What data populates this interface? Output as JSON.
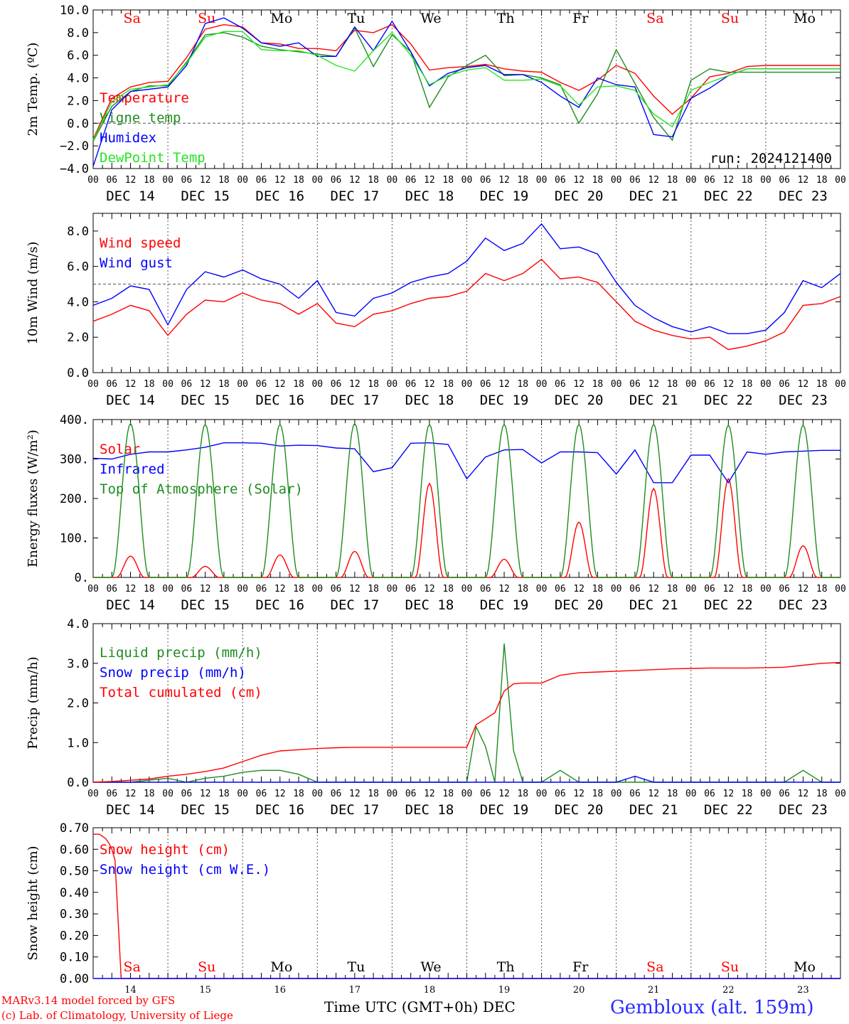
{
  "footer": {
    "credit_line1": "MARv3.14 model forced by GFS",
    "credit_line2": "(c) Lab. of Climatology, University of Liege",
    "xaxis_title": "Time UTC (GMT+0h) DEC",
    "station": "Gembloux (alt. 159m)"
  },
  "colors": {
    "red": "#ff0000",
    "green": "#1e8c1e",
    "blue": "#0000ff",
    "lightgreen": "#22e622",
    "grid": "#555555"
  },
  "days": [
    "14",
    "15",
    "16",
    "17",
    "18",
    "19",
    "20",
    "21",
    "22",
    "23"
  ],
  "day_labels": [
    "DEC 14",
    "DEC 15",
    "DEC 16",
    "DEC 17",
    "DEC 18",
    "DEC 19",
    "DEC 20",
    "DEC 21",
    "DEC 22",
    "DEC 23"
  ],
  "weekdays": [
    "Sa",
    "Su",
    "Mo",
    "Tu",
    "We",
    "Th",
    "Fr",
    "Sa",
    "Su",
    "Mo"
  ],
  "hour_ticks": [
    "00",
    "06",
    "12",
    "18"
  ],
  "chart_data": [
    {
      "type": "line",
      "ylabel": "2m Temp. (ºC)",
      "ylim": [
        -4,
        10
      ],
      "yticks": [
        "−4.0",
        "−2.0",
        "0.0",
        "2.0",
        "4.0",
        "6.0",
        "8.0",
        "10.0"
      ],
      "ytick_values": [
        -4,
        -2,
        0,
        2,
        4,
        6,
        8,
        10
      ],
      "ref_line": 0,
      "annotation": "run: 2024121400",
      "x_hours": [
        0,
        6,
        12,
        18,
        24,
        30,
        36,
        42,
        48,
        54,
        60,
        66,
        72,
        78,
        84,
        90,
        96,
        102,
        108,
        114,
        120,
        126,
        132,
        138,
        144,
        150,
        156,
        162,
        168,
        174,
        180,
        186,
        192,
        198,
        204,
        210,
        216,
        222,
        228,
        234,
        240
      ],
      "series": [
        {
          "name": "Temperature",
          "color": "#ff0000",
          "values": [
            -1.4,
            2.2,
            3.2,
            3.6,
            3.7,
            5.8,
            8.3,
            8.7,
            8.5,
            7.1,
            7.0,
            6.6,
            6.6,
            6.4,
            8.2,
            8.0,
            8.7,
            7.0,
            4.7,
            4.9,
            5.0,
            5.2,
            4.8,
            4.6,
            4.5,
            3.6,
            2.9,
            3.8,
            5.1,
            4.4,
            2.4,
            0.8,
            2.2,
            4.1,
            4.4,
            5.0,
            5.1,
            5.1,
            5.1,
            5.1,
            5.1
          ]
        },
        {
          "name": "Vigne temp",
          "color": "#1e8c1e",
          "values": [
            -1.6,
            1.5,
            2.8,
            3.3,
            3.3,
            5.4,
            7.8,
            8.0,
            7.6,
            6.8,
            6.5,
            6.3,
            6.1,
            5.9,
            8.4,
            5.0,
            7.8,
            6.3,
            1.4,
            4.1,
            5.1,
            6.0,
            4.2,
            4.3,
            4.0,
            3.4,
            0.0,
            2.6,
            6.5,
            3.5,
            0.5,
            -1.5,
            3.8,
            4.8,
            4.5,
            4.5,
            4.5,
            4.5,
            4.5,
            4.5,
            4.5
          ]
        },
        {
          "name": "Humidex",
          "color": "#0000ff",
          "values": [
            -3.8,
            1.2,
            2.8,
            3.0,
            3.2,
            5.1,
            8.8,
            9.3,
            8.4,
            7.1,
            6.8,
            7.1,
            5.9,
            5.9,
            8.5,
            6.4,
            9.0,
            6.3,
            3.3,
            4.4,
            4.9,
            5.1,
            4.3,
            4.3,
            3.6,
            2.4,
            1.4,
            4.0,
            3.4,
            3.2,
            -1.0,
            -1.2,
            2.2,
            3.1,
            4.2,
            4.8,
            4.8,
            4.8,
            4.8,
            4.8,
            4.8
          ]
        },
        {
          "name": "DewPoint Temp",
          "color": "#22e622",
          "values": [
            -1.5,
            1.9,
            3.0,
            3.2,
            3.4,
            5.3,
            7.6,
            8.1,
            8.1,
            6.5,
            6.4,
            6.4,
            6.0,
            5.1,
            4.6,
            6.4,
            8.0,
            6.0,
            3.4,
            4.2,
            4.7,
            4.9,
            3.8,
            3.8,
            3.9,
            3.3,
            1.6,
            3.2,
            3.3,
            2.9,
            0.8,
            -0.3,
            2.9,
            3.6,
            4.2,
            4.8,
            4.8,
            4.8,
            4.8,
            4.8,
            4.8
          ]
        }
      ]
    },
    {
      "type": "line",
      "ylabel": "10m Wind (m/s)",
      "ylim": [
        0,
        9
      ],
      "yticks": [
        "0.0",
        "2.0",
        "4.0",
        "6.0",
        "8.0"
      ],
      "ytick_values": [
        0,
        2,
        4,
        6,
        8
      ],
      "ref_line": 5,
      "x_hours": [
        0,
        6,
        12,
        18,
        24,
        30,
        36,
        42,
        48,
        54,
        60,
        66,
        72,
        78,
        84,
        90,
        96,
        102,
        108,
        114,
        120,
        126,
        132,
        138,
        144,
        150,
        156,
        162,
        168,
        174,
        180,
        186,
        192,
        198,
        204,
        210,
        216,
        222,
        228,
        234,
        240
      ],
      "series": [
        {
          "name": "Wind speed",
          "color": "#ff0000",
          "values": [
            2.9,
            3.3,
            3.8,
            3.5,
            2.1,
            3.3,
            4.1,
            4.0,
            4.5,
            4.1,
            3.9,
            3.3,
            3.9,
            2.8,
            2.6,
            3.3,
            3.5,
            3.9,
            4.2,
            4.3,
            4.6,
            5.6,
            5.2,
            5.6,
            6.4,
            5.3,
            5.4,
            5.1,
            4.0,
            2.9,
            2.4,
            2.1,
            1.9,
            2.0,
            1.3,
            1.5,
            1.8,
            2.3,
            3.8,
            3.9,
            4.3
          ]
        },
        {
          "name": "Wind gust",
          "color": "#0000ff",
          "values": [
            3.8,
            4.2,
            4.9,
            4.7,
            2.7,
            4.7,
            5.7,
            5.4,
            5.8,
            5.3,
            5.0,
            4.2,
            5.2,
            3.4,
            3.2,
            4.2,
            4.5,
            5.1,
            5.4,
            5.6,
            6.3,
            7.6,
            6.9,
            7.3,
            8.4,
            7.0,
            7.1,
            6.7,
            5.1,
            3.8,
            3.1,
            2.6,
            2.3,
            2.6,
            2.2,
            2.2,
            2.4,
            3.4,
            5.2,
            4.8,
            5.6
          ]
        }
      ]
    },
    {
      "type": "line",
      "ylabel": "Energy fluxes (W/m²)",
      "ylim": [
        0,
        400
      ],
      "yticks": [
        "0.",
        "100.",
        "200.",
        "300.",
        "400."
      ],
      "ytick_values": [
        0,
        100,
        200,
        300,
        400
      ],
      "x_hours": [
        0,
        6,
        12,
        18,
        24,
        30,
        36,
        42,
        48,
        54,
        60,
        66,
        72,
        78,
        84,
        90,
        96,
        102,
        108,
        114,
        120,
        126,
        132,
        138,
        144,
        150,
        156,
        162,
        168,
        174,
        180,
        186,
        192,
        198,
        204,
        210,
        216,
        222,
        228,
        234,
        240
      ],
      "daily_peaks": {
        "Solar": [
          54,
          28,
          57,
          66,
          238,
          46,
          140,
          225,
          250,
          80
        ],
        "Top of Atmosphere (Solar)": [
          390,
          388,
          388,
          390,
          388,
          388,
          388,
          388,
          386,
          386
        ]
      },
      "series": [
        {
          "name": "Solar",
          "color": "#ff0000"
        },
        {
          "name": "Infrared",
          "color": "#0000ff",
          "values": [
            302,
            300,
            312,
            318,
            318,
            323,
            330,
            341,
            341,
            340,
            333,
            335,
            334,
            328,
            326,
            268,
            278,
            340,
            341,
            337,
            250,
            305,
            323,
            324,
            290,
            318,
            318,
            316,
            262,
            323,
            240,
            240,
            310,
            310,
            240,
            318,
            312,
            318,
            320,
            322,
            322
          ]
        },
        {
          "name": "Top of Atmosphere (Solar)",
          "color": "#1e8c1e"
        }
      ]
    },
    {
      "type": "line",
      "ylabel": "Precip (mm/h)",
      "ylim": [
        0,
        4
      ],
      "yticks": [
        "0.0",
        "1.0",
        "2.0",
        "3.0",
        "4.0"
      ],
      "ytick_values": [
        0,
        1,
        2,
        3,
        4
      ],
      "x_hours": [
        0,
        6,
        12,
        18,
        24,
        30,
        36,
        42,
        48,
        54,
        60,
        66,
        72,
        78,
        84,
        90,
        96,
        102,
        108,
        114,
        120,
        123,
        126,
        129,
        132,
        135,
        138,
        144,
        150,
        156,
        162,
        168,
        174,
        180,
        186,
        192,
        198,
        204,
        210,
        216,
        222,
        228,
        234,
        240
      ],
      "series": [
        {
          "name": "Liquid precip (mm/h)",
          "color": "#1e8c1e",
          "values": [
            0.0,
            0.0,
            0.0,
            0.05,
            0.1,
            0.0,
            0.1,
            0.15,
            0.25,
            0.3,
            0.3,
            0.2,
            0.0,
            0.0,
            0.0,
            0.0,
            0.0,
            0.0,
            0.0,
            0.0,
            0.0,
            1.4,
            0.9,
            0.0,
            3.5,
            0.8,
            0.0,
            0.0,
            0.3,
            0.0,
            0.0,
            0.0,
            0.0,
            0.0,
            0.0,
            0.0,
            0.0,
            0.0,
            0.0,
            0.0,
            0.0,
            0.3,
            0.0,
            0.0
          ]
        },
        {
          "name": "Snow precip (mm/h)",
          "color": "#0000ff",
          "values": [
            0.0,
            0.0,
            0.0,
            0.0,
            0.0,
            0.0,
            0.0,
            0.0,
            0.0,
            0.0,
            0.0,
            0.0,
            0.0,
            0.0,
            0.0,
            0.0,
            0.0,
            0.0,
            0.0,
            0.0,
            0.0,
            0.0,
            0.0,
            0.0,
            0.0,
            0.0,
            0.0,
            0.0,
            0.0,
            0.0,
            0.0,
            0.0,
            0.15,
            0.0,
            0.0,
            0.0,
            0.0,
            0.0,
            0.0,
            0.0,
            0.0,
            0.0,
            0.0,
            0.0
          ]
        },
        {
          "name": "Total cumulated (cm)",
          "color": "#ff0000",
          "values": [
            0.0,
            0.02,
            0.05,
            0.08,
            0.15,
            0.2,
            0.27,
            0.36,
            0.52,
            0.68,
            0.79,
            0.82,
            0.85,
            0.87,
            0.88,
            0.88,
            0.88,
            0.88,
            0.88,
            0.88,
            0.88,
            1.45,
            1.6,
            1.75,
            2.3,
            2.48,
            2.5,
            2.5,
            2.7,
            2.76,
            2.78,
            2.8,
            2.82,
            2.84,
            2.86,
            2.87,
            2.88,
            2.88,
            2.88,
            2.89,
            2.9,
            2.95,
            3.0,
            3.02
          ]
        }
      ]
    },
    {
      "type": "line",
      "ylabel": "Snow height (cm)",
      "ylim": [
        0,
        0.7
      ],
      "yticks": [
        "0.00",
        "0.10",
        "0.20",
        "0.30",
        "0.40",
        "0.50",
        "0.60",
        "0.70"
      ],
      "ytick_values": [
        0,
        0.1,
        0.2,
        0.3,
        0.4,
        0.5,
        0.6,
        0.7
      ],
      "x_hours": [
        0,
        2,
        4,
        5,
        6,
        7,
        9,
        12,
        240
      ],
      "series": [
        {
          "name": "Snow height (cm)",
          "color": "#ff0000",
          "values": [
            0.67,
            0.67,
            0.65,
            0.63,
            0.6,
            0.55,
            0.0,
            0.0,
            0.0
          ]
        },
        {
          "name": "Snow height (cm W.E.)",
          "color": "#0000ff",
          "values": [
            0.0,
            0.0,
            0.0,
            0.0,
            0.0,
            0.0,
            0.0,
            0.0,
            0.0
          ]
        }
      ]
    }
  ]
}
